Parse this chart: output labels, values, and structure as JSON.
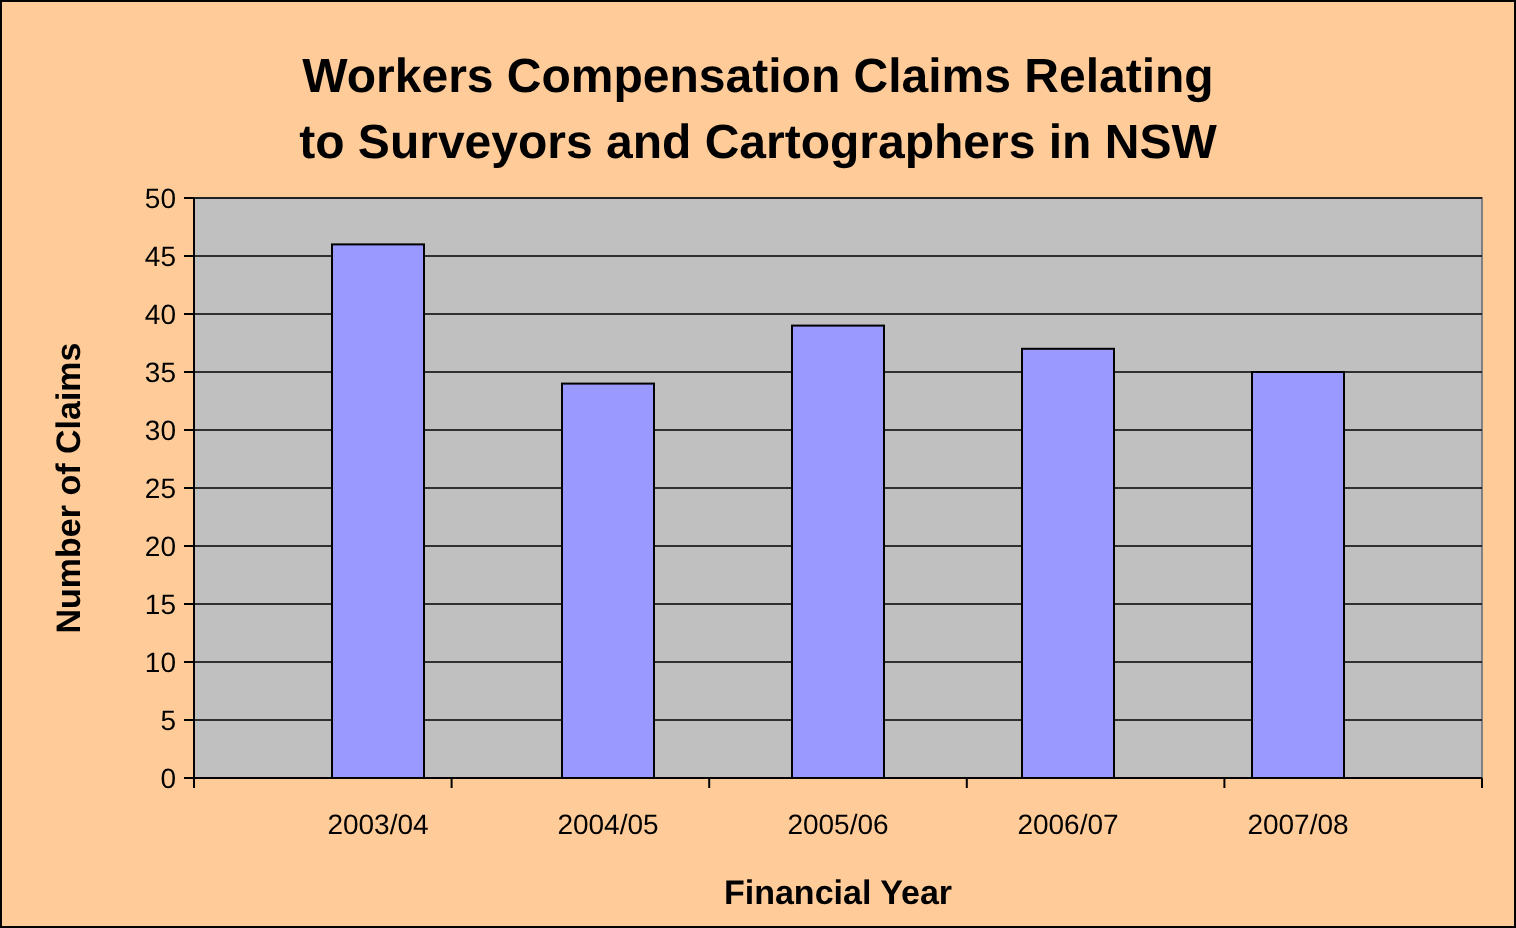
{
  "chart_data": {
    "type": "bar",
    "title": "Workers Compensation Claims Relating to Surveyors and Cartographers in NSW",
    "xlabel": "Financial Year",
    "ylabel": "Number of Claims",
    "categories": [
      "2003/04",
      "2004/05",
      "2005/06",
      "2006/07",
      "2007/08"
    ],
    "values": [
      46,
      34,
      39,
      37,
      35
    ],
    "color": "#9999ff",
    "ylim": [
      0,
      50
    ],
    "yticks": [
      0,
      5,
      10,
      15,
      20,
      25,
      30,
      35,
      40,
      45,
      50
    ],
    "grid": "y"
  }
}
